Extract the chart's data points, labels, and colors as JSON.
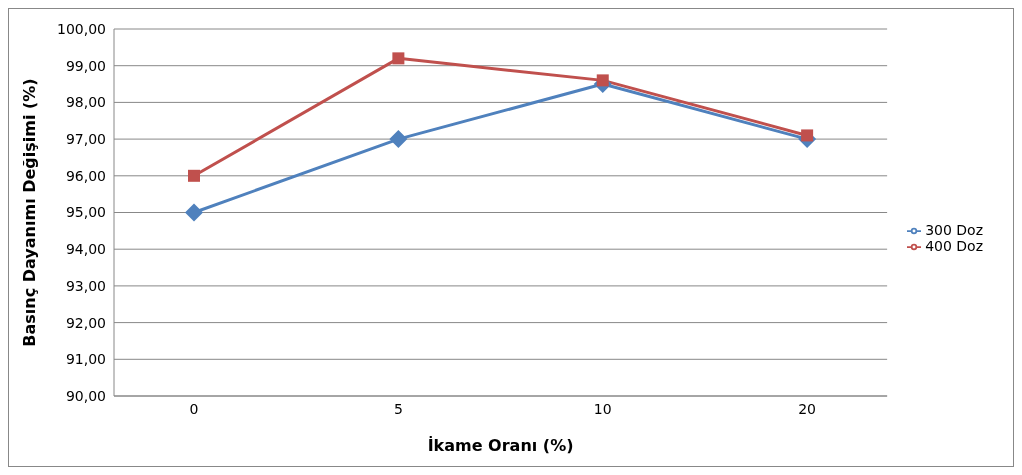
{
  "chart_data": {
    "type": "line",
    "xlabel": "İkame Oranı (%)",
    "ylabel": "Basınç Dayanımı Değişimi (%)",
    "categories": [
      "0",
      "5",
      "10",
      "20"
    ],
    "series": [
      {
        "name": "300 Doz",
        "color": "#4f81bd",
        "values": [
          95.0,
          97.0,
          98.5,
          97.0
        ],
        "marker": "diamond"
      },
      {
        "name": "400 Doz",
        "color": "#c0504d",
        "values": [
          96.0,
          99.2,
          98.6,
          97.1
        ],
        "marker": "square"
      }
    ],
    "ylim": [
      90,
      100
    ],
    "yticks": [
      {
        "value": 90,
        "label": "90,00"
      },
      {
        "value": 91,
        "label": "91,00"
      },
      {
        "value": 92,
        "label": "92,00"
      },
      {
        "value": 93,
        "label": "93,00"
      },
      {
        "value": 94,
        "label": "94,00"
      },
      {
        "value": 95,
        "label": "95,00"
      },
      {
        "value": 96,
        "label": "96,00"
      },
      {
        "value": 97,
        "label": "97,00"
      },
      {
        "value": 98,
        "label": "98,00"
      },
      {
        "value": 99,
        "label": "99,00"
      },
      {
        "value": 100,
        "label": "100,00"
      }
    ],
    "grid": "y",
    "legend": "right",
    "line_style": "solid"
  }
}
